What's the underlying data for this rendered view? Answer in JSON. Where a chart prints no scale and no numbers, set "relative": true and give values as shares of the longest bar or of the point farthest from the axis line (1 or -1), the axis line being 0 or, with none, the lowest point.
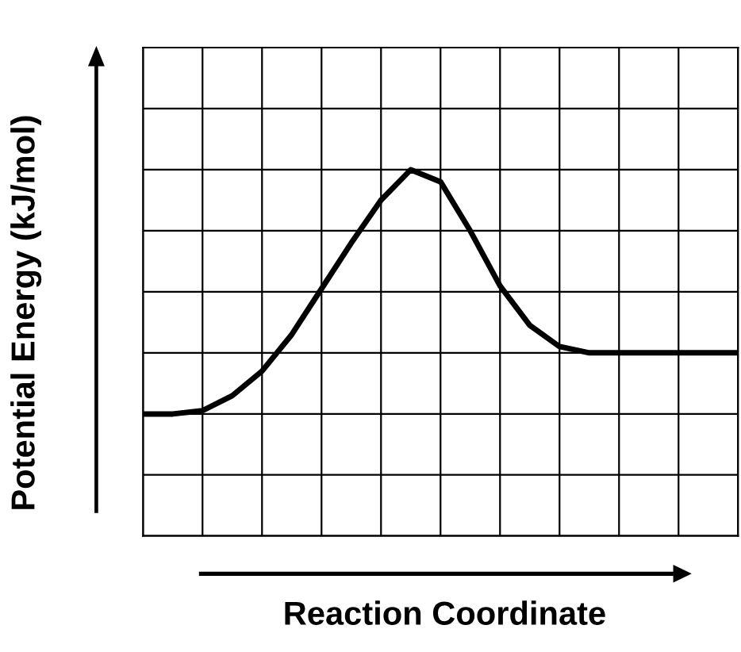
{
  "chart_data": {
    "type": "line",
    "relative": true,
    "grid": true,
    "marker": "none",
    "line_style": "solid",
    "xlabel": "Reaction Coordinate",
    "ylabel": "Potential Energy (kJ/mol)",
    "categories": [
      null,
      null,
      null,
      null,
      null,
      null,
      null,
      null,
      null,
      null,
      null,
      null,
      null,
      null,
      null,
      null,
      null,
      null,
      null,
      null,
      null
    ],
    "series": [
      {
        "color": "#000000",
        "values": [
          0.333,
          0.333,
          0.342,
          0.383,
          0.45,
          0.55,
          0.675,
          0.8,
          0.917,
          1,
          0.967,
          0.833,
          0.683,
          0.575,
          0.517,
          0.5,
          0.5,
          0.5,
          0.5,
          0.5,
          0.5
        ]
      }
    ]
  }
}
